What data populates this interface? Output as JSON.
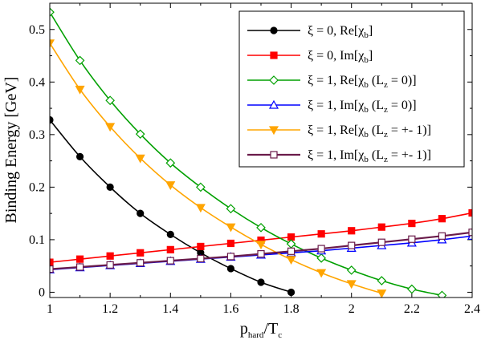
{
  "chart_data": {
    "type": "line",
    "xlabel": {
      "main": "p",
      "sub1": "hard",
      "mid": "/T",
      "sub2": "c"
    },
    "ylabel": "Binding Energy [GeV]",
    "xlim": [
      1.0,
      2.4
    ],
    "ylim": [
      -0.01,
      0.55
    ],
    "xticks": [
      "1",
      "1.2",
      "1.4",
      "1.6",
      "1.8",
      "2",
      "2.2",
      "2.4"
    ],
    "yticks": [
      "0",
      "0.1",
      "0.2",
      "0.3",
      "0.4",
      "0.5"
    ],
    "xtick_values": [
      1.0,
      1.2,
      1.4,
      1.6,
      1.8,
      2.0,
      2.2,
      2.4
    ],
    "ytick_values": [
      0,
      0.1,
      0.2,
      0.3,
      0.4,
      0.5
    ],
    "grid": false,
    "legend_position": "top-right",
    "series": [
      {
        "name": "ξ = 0, Re[χb]",
        "legend": {
          "pre": "ξ = 0, Re[χ",
          "sub": "b",
          "post": "]"
        },
        "color": "#000000",
        "marker": "filled-circle",
        "x": [
          1.0,
          1.1,
          1.2,
          1.3,
          1.4,
          1.5,
          1.6,
          1.7,
          1.8
        ],
        "y": [
          0.328,
          0.258,
          0.2,
          0.15,
          0.11,
          0.075,
          0.045,
          0.019,
          0.0
        ]
      },
      {
        "name": "ξ = 0, Im[χb]",
        "legend": {
          "pre": "ξ = 0, Im[χ",
          "sub": "b",
          "post": "]"
        },
        "color": "#ff0000",
        "marker": "filled-square",
        "x": [
          1.0,
          1.1,
          1.2,
          1.3,
          1.4,
          1.5,
          1.6,
          1.7,
          1.8,
          1.9,
          2.0,
          2.1,
          2.2,
          2.3,
          2.4
        ],
        "y": [
          0.057,
          0.063,
          0.069,
          0.075,
          0.081,
          0.087,
          0.093,
          0.099,
          0.105,
          0.111,
          0.117,
          0.124,
          0.131,
          0.14,
          0.151
        ]
      },
      {
        "name": "ξ = 1, Re[χb (Lz = 0)]",
        "legend": {
          "pre": "ξ = 1, Re[χ",
          "sub": "b",
          "mid": " (L",
          "sub2": "z",
          "post": " = 0)]"
        },
        "color": "#00a000",
        "marker": "open-diamond",
        "x": [
          1.0,
          1.1,
          1.2,
          1.3,
          1.4,
          1.5,
          1.6,
          1.7,
          1.8,
          1.9,
          2.0,
          2.1,
          2.2,
          2.3
        ],
        "y": [
          0.533,
          0.441,
          0.365,
          0.301,
          0.246,
          0.2,
          0.159,
          0.123,
          0.092,
          0.065,
          0.042,
          0.022,
          0.006,
          -0.006
        ]
      },
      {
        "name": "ξ = 1, Im[χb (Lz = 0)]",
        "legend": {
          "pre": "ξ = 1, Im[χ",
          "sub": "b",
          "mid": " (L",
          "sub2": "z",
          "post": " = 0)]"
        },
        "color": "#0000ff",
        "marker": "open-triangle-up",
        "x": [
          1.0,
          1.1,
          1.2,
          1.3,
          1.4,
          1.5,
          1.6,
          1.7,
          1.8,
          1.9,
          2.0,
          2.1,
          2.2,
          2.3,
          2.4
        ],
        "y": [
          0.043,
          0.047,
          0.051,
          0.055,
          0.059,
          0.063,
          0.067,
          0.071,
          0.075,
          0.079,
          0.084,
          0.089,
          0.094,
          0.1,
          0.107
        ]
      },
      {
        "name": "ξ = 1, Re[χb (Lz = +- 1)]",
        "legend": {
          "pre": "ξ = 1, Re[χ",
          "sub": "b",
          "mid": " (L",
          "sub2": "z",
          "post": " = +- 1)]"
        },
        "color": "#ffa500",
        "marker": "filled-triangle-down",
        "x": [
          1.0,
          1.1,
          1.2,
          1.3,
          1.4,
          1.5,
          1.6,
          1.7,
          1.8,
          1.9,
          2.0,
          2.1
        ],
        "y": [
          0.474,
          0.386,
          0.315,
          0.255,
          0.204,
          0.161,
          0.124,
          0.091,
          0.062,
          0.037,
          0.016,
          -0.002
        ]
      },
      {
        "name": "ξ = 1, Im[χb (Lz = +- 1)]",
        "legend": {
          "pre": "ξ = 1, Im[χ",
          "sub": "b",
          "mid": " (L",
          "sub2": "z",
          "post": " = +- 1)]"
        },
        "color": "#6a1b4a",
        "marker": "open-square",
        "x": [
          1.0,
          1.1,
          1.2,
          1.3,
          1.4,
          1.5,
          1.6,
          1.7,
          1.8,
          1.9,
          2.0,
          2.1,
          2.2,
          2.3,
          2.4
        ],
        "y": [
          0.044,
          0.048,
          0.052,
          0.056,
          0.06,
          0.064,
          0.068,
          0.073,
          0.078,
          0.083,
          0.089,
          0.095,
          0.101,
          0.107,
          0.114
        ]
      }
    ]
  }
}
